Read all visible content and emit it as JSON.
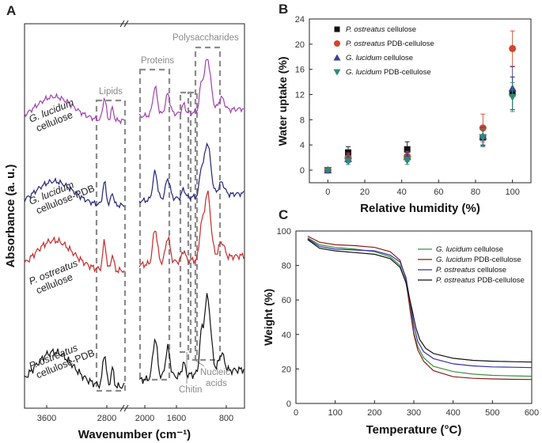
{
  "panels": {
    "a": "A",
    "b": "B",
    "c": "C"
  },
  "chart_data": [
    {
      "panel": "A",
      "type": "line",
      "title": "",
      "xlabel": "Wavenumber (cm⁻¹)",
      "ylabel": "Absorbance (a. u.)",
      "xlim": [
        3900,
        600
      ],
      "x_ticks": [
        "3600",
        "2800",
        "2000",
        "1600",
        "800"
      ],
      "series": [
        {
          "name": "G. lucidum cellulose",
          "line1": "G. lucidum",
          "line2": "cellulose",
          "color": "#a040b0"
        },
        {
          "name": "G. lucidum cellulose-PDB",
          "line1": "G. lucidum",
          "line2": "cellulose-PDB",
          "color": "#23237a"
        },
        {
          "name": "P. ostreatus cellulose",
          "line1": "P. ostreatus",
          "line2": "cellulose",
          "color": "#c62a2a"
        },
        {
          "name": "P. ostreatus cellulose-PDB",
          "line1": "P. ostreatus",
          "line2": "cellulose-PDB",
          "color": "#111111"
        }
      ],
      "annotations": [
        "Lipids",
        "Proteins",
        "Polysaccharides",
        "Chitin",
        "Nucleic",
        "acids"
      ]
    },
    {
      "panel": "B",
      "type": "scatter",
      "title": "",
      "xlabel": "Relative humidity (%)",
      "ylabel": "Water uptake (%)",
      "xlim": [
        -10,
        110
      ],
      "ylim": [
        -2,
        24
      ],
      "x_ticks": [
        0,
        20,
        40,
        60,
        80,
        100
      ],
      "y_ticks": [
        0,
        4,
        8,
        12,
        16,
        20,
        24
      ],
      "x": [
        0,
        11,
        43,
        84,
        100
      ],
      "series": [
        {
          "name": "P. ostreatus cellulose",
          "species": "P. ostreatus",
          "suffix": " cellulose",
          "marker": "square",
          "color": "#111111",
          "values": [
            0.0,
            2.8,
            3.3,
            5.2,
            12.2
          ],
          "errors": [
            0.2,
            0.9,
            1.2,
            1.3,
            2.6
          ]
        },
        {
          "name": "P. ostreatus PDB-cellulose",
          "species": "P. ostreatus",
          "suffix": " PDB-cellulose",
          "marker": "circle",
          "color": "#d0452b",
          "values": [
            0.0,
            2.0,
            2.2,
            6.7,
            19.3
          ],
          "errors": [
            0.2,
            0.7,
            0.8,
            2.2,
            2.8
          ]
        },
        {
          "name": "G. lucidum cellulose",
          "species": "G. lucidum",
          "suffix": " cellulose",
          "marker": "triangle-up",
          "color": "#3a3f9a",
          "values": [
            0.0,
            1.8,
            2.1,
            5.4,
            13.0
          ],
          "errors": [
            0.2,
            0.6,
            0.7,
            1.4,
            3.4
          ]
        },
        {
          "name": "G. lucidum PDB-cellulose",
          "species": "G. lucidum",
          "suffix": " PDB-cellulose",
          "marker": "triangle-down",
          "color": "#2e8a72",
          "values": [
            0.0,
            1.4,
            1.5,
            5.2,
            11.6
          ],
          "errors": [
            0.2,
            0.5,
            0.6,
            1.5,
            2.3
          ]
        }
      ]
    },
    {
      "panel": "C",
      "type": "line",
      "title": "",
      "xlabel": "Temperature (°C)",
      "ylabel": "Weight (%)",
      "xlim": [
        0,
        600
      ],
      "ylim": [
        0,
        100
      ],
      "x_ticks": [
        0,
        100,
        200,
        300,
        400,
        500,
        600
      ],
      "y_ticks": [
        0,
        20,
        40,
        60,
        80,
        100
      ],
      "series": [
        {
          "name": "G. lucidum cellulose",
          "species": "G. lucidum",
          "suffix": " cellulose",
          "color": "#3d8f3d",
          "x": [
            30,
            60,
            100,
            150,
            200,
            240,
            265,
            280,
            292,
            300,
            310,
            325,
            350,
            400,
            450,
            500,
            550,
            600
          ],
          "y": [
            96,
            92,
            90.5,
            89.5,
            88,
            85,
            80,
            70,
            54,
            41,
            33,
            26.5,
            21.5,
            18.5,
            17,
            16.3,
            16,
            15.8
          ]
        },
        {
          "name": "G. lucidum PDB-cellulose",
          "species": "G. lucidum",
          "suffix": " PDB-cellulose",
          "color": "#8a1c1c",
          "x": [
            30,
            60,
            100,
            150,
            200,
            240,
            265,
            280,
            290,
            300,
            310,
            325,
            350,
            400,
            450,
            500,
            550,
            600
          ],
          "y": [
            97,
            93.5,
            92,
            91.5,
            90.5,
            88,
            83,
            72,
            55,
            40,
            31,
            24.5,
            19,
            15.5,
            14.6,
            14.2,
            14,
            13.9
          ]
        },
        {
          "name": "P. ostreatus cellulose",
          "species": "P. ostreatus",
          "suffix": " cellulose",
          "color": "#3030a8",
          "x": [
            30,
            60,
            100,
            150,
            200,
            240,
            265,
            280,
            292,
            300,
            310,
            325,
            350,
            400,
            450,
            500,
            550,
            600
          ],
          "y": [
            95.5,
            91,
            89.5,
            89,
            88.5,
            86,
            82,
            73,
            57,
            45,
            36,
            30,
            26,
            23,
            21.8,
            21.2,
            21,
            20.8
          ]
        },
        {
          "name": "P. ostreatus PDB-cellulose",
          "species": "P. ostreatus",
          "suffix": " PDB-cellulose",
          "color": "#111111",
          "x": [
            30,
            60,
            100,
            150,
            200,
            240,
            265,
            280,
            295,
            305,
            315,
            330,
            350,
            400,
            450,
            500,
            550,
            600
          ],
          "y": [
            95,
            90,
            88.5,
            87.5,
            86.5,
            84,
            79,
            70,
            55,
            44,
            37,
            32,
            29,
            26.2,
            25,
            24.5,
            24.2,
            24
          ]
        }
      ]
    }
  ]
}
